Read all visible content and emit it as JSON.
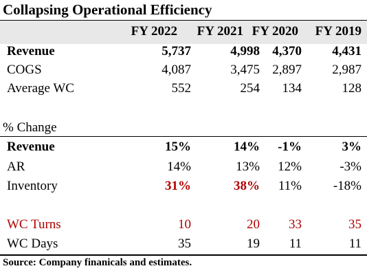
{
  "title": "Collapsing Operational Efficiency",
  "header": [
    "FY 2022",
    "FY 2021",
    "FY 2020",
    "FY 2019"
  ],
  "rows": [
    {
      "label": "Revenue",
      "values": [
        "5,737",
        "4,998",
        "4,370",
        "4,431"
      ]
    },
    {
      "label": "COGS",
      "values": [
        "4,087",
        "3,475",
        "2,897",
        "2,987"
      ]
    },
    {
      "label": "Average WC",
      "values": [
        "552",
        "254",
        "134",
        "128"
      ]
    },
    {
      "label": "% Change"
    },
    {
      "label": "Revenue",
      "values": [
        "15%",
        "14%",
        "-1%",
        "3%"
      ]
    },
    {
      "label": "AR",
      "values": [
        "14%",
        "13%",
        "12%",
        "-3%"
      ]
    },
    {
      "label": "Inventory",
      "values": [
        "31%",
        "38%",
        "11%",
        "-18%"
      ]
    },
    {
      "label": "WC Turns",
      "values": [
        "10",
        "20",
        "33",
        "35"
      ]
    },
    {
      "label": "WC Days",
      "values": [
        "35",
        "19",
        "11",
        "11"
      ]
    }
  ],
  "source": "Source: Company finanicals and estimates.",
  "colors": {
    "highlight_red": "#b00000",
    "header_band": "#e8e8e8"
  }
}
